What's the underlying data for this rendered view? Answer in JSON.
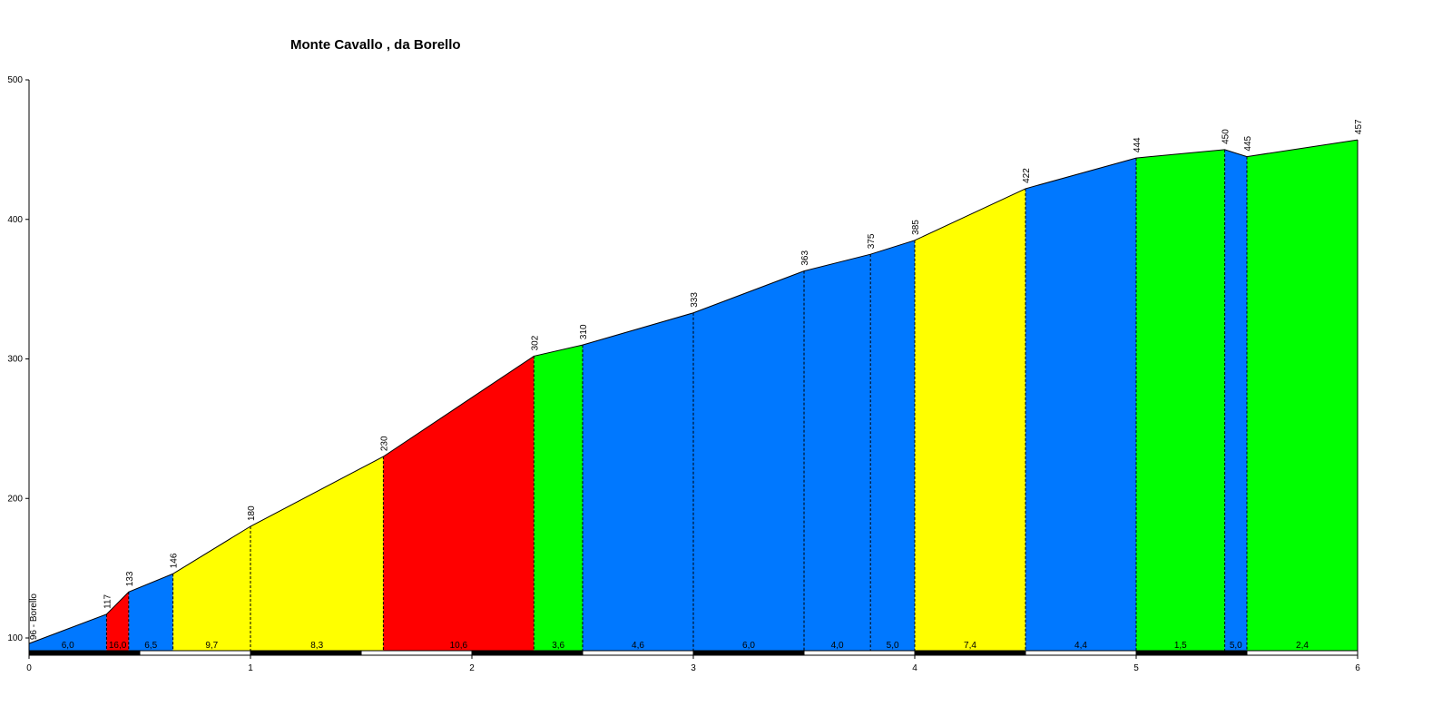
{
  "chart_data": {
    "type": "area",
    "title": "Monte Cavallo , da Borello",
    "xlim": [
      0,
      6
    ],
    "ylim": [
      90,
      500
    ],
    "x_ticks": [
      "0",
      "1",
      "2",
      "3",
      "4",
      "5",
      "6"
    ],
    "y_ticks": [
      "100",
      "200",
      "300",
      "400",
      "500"
    ],
    "start_label": "96 - Borello",
    "points": [
      {
        "x": 0,
        "y": 96,
        "label": "96 - Borello"
      },
      {
        "x": 0.35,
        "y": 117,
        "label": "117"
      },
      {
        "x": 0.45,
        "y": 133,
        "label": "133"
      },
      {
        "x": 0.65,
        "y": 146,
        "label": "146"
      },
      {
        "x": 1.0,
        "y": 180,
        "label": "180"
      },
      {
        "x": 1.6,
        "y": 230,
        "label": "230"
      },
      {
        "x": 2.28,
        "y": 302,
        "label": "302"
      },
      {
        "x": 2.5,
        "y": 310,
        "label": "310"
      },
      {
        "x": 3.0,
        "y": 333,
        "label": "333"
      },
      {
        "x": 3.5,
        "y": 363,
        "label": "363"
      },
      {
        "x": 3.8,
        "y": 375,
        "label": "375"
      },
      {
        "x": 4.0,
        "y": 385,
        "label": "385"
      },
      {
        "x": 4.5,
        "y": 422,
        "label": "422"
      },
      {
        "x": 5.0,
        "y": 444,
        "label": "444"
      },
      {
        "x": 5.4,
        "y": 450,
        "label": "450"
      },
      {
        "x": 5.5,
        "y": 445,
        "label": "445"
      },
      {
        "x": 6.0,
        "y": 457,
        "label": "457"
      }
    ],
    "segments": [
      {
        "gradient": "6,0",
        "color": "#0078FF"
      },
      {
        "gradient": "16,0",
        "color": "#FF0000"
      },
      {
        "gradient": "6,5",
        "color": "#0078FF"
      },
      {
        "gradient": "9,7",
        "color": "#FFFF00"
      },
      {
        "gradient": "8,3",
        "color": "#FFFF00"
      },
      {
        "gradient": "10,6",
        "color": "#FF0000"
      },
      {
        "gradient": "3,6",
        "color": "#00FF00"
      },
      {
        "gradient": "4,6",
        "color": "#0078FF"
      },
      {
        "gradient": "6,0",
        "color": "#0078FF"
      },
      {
        "gradient": "4,0",
        "color": "#0078FF"
      },
      {
        "gradient": "5,0",
        "color": "#0078FF"
      },
      {
        "gradient": "7,4",
        "color": "#FFFF00"
      },
      {
        "gradient": "4,4",
        "color": "#0078FF"
      },
      {
        "gradient": "1,5",
        "color": "#00FF00"
      },
      {
        "gradient": "5,0",
        "color": "#0078FF"
      },
      {
        "gradient": "2,4",
        "color": "#00FF00"
      }
    ]
  }
}
